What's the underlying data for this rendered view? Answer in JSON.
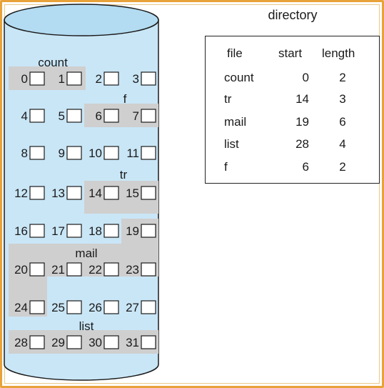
{
  "directory": {
    "title": "directory",
    "headers": [
      "file",
      "start",
      "length"
    ],
    "rows": [
      {
        "file": "count",
        "start": "0",
        "length": "2"
      },
      {
        "file": "tr",
        "start": "14",
        "length": "3"
      },
      {
        "file": "mail",
        "start": "19",
        "length": "6"
      },
      {
        "file": "list",
        "start": "28",
        "length": "4"
      },
      {
        "file": "f",
        "start": "6",
        "length": "2"
      }
    ]
  },
  "disk": {
    "blocks": [
      "0",
      "1",
      "2",
      "3",
      "4",
      "5",
      "6",
      "7",
      "8",
      "9",
      "10",
      "11",
      "12",
      "13",
      "14",
      "15",
      "16",
      "17",
      "18",
      "19",
      "20",
      "21",
      "22",
      "23",
      "24",
      "25",
      "26",
      "27",
      "28",
      "29",
      "30",
      "31"
    ],
    "file_labels": [
      "count",
      "f",
      "tr",
      "mail",
      "list"
    ],
    "colors": {
      "disk_fill": "#c9e6f6",
      "disk_top": "#b3dbf1",
      "highlight": "#cfcfcf",
      "frame": "#e8a23a"
    }
  }
}
